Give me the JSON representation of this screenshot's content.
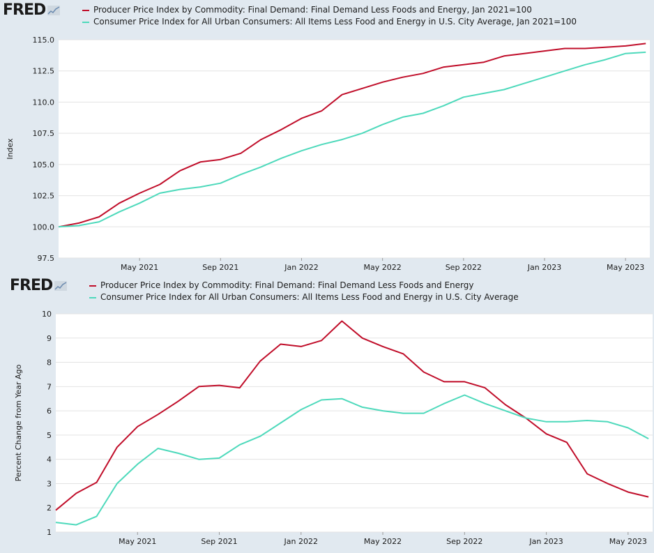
{
  "chart_data": [
    {
      "type": "line",
      "brand": "FRED",
      "ylabel": "Index",
      "ylim": [
        97.5,
        115.0
      ],
      "yticks": [
        "97.5",
        "100.0",
        "102.5",
        "105.0",
        "107.5",
        "110.0",
        "112.5",
        "115.0"
      ],
      "xticks": [
        "May 2021",
        "Sep 2021",
        "Jan 2022",
        "May 2022",
        "Sep 2022",
        "Jan 2023",
        "May 2023"
      ],
      "x": [
        "2021-01",
        "2021-02",
        "2021-03",
        "2021-04",
        "2021-05",
        "2021-06",
        "2021-07",
        "2021-08",
        "2021-09",
        "2021-10",
        "2021-11",
        "2021-12",
        "2022-01",
        "2022-02",
        "2022-03",
        "2022-04",
        "2022-05",
        "2022-06",
        "2022-07",
        "2022-08",
        "2022-09",
        "2022-10",
        "2022-11",
        "2022-12",
        "2023-01",
        "2023-02",
        "2023-03",
        "2023-04",
        "2023-05",
        "2023-06"
      ],
      "grid": true,
      "series": [
        {
          "name": "Producer Price Index by Commodity: Final Demand: Final Demand Less Foods and Energy, Jan 2021=100",
          "color": "#c00d29",
          "values": [
            100.0,
            100.3,
            100.8,
            101.9,
            102.7,
            103.4,
            104.5,
            105.2,
            105.4,
            105.9,
            107.0,
            107.8,
            108.7,
            109.3,
            110.6,
            111.1,
            111.6,
            112.0,
            112.3,
            112.8,
            113.0,
            113.2,
            113.7,
            113.9,
            114.1,
            114.3,
            114.3,
            114.4,
            114.5,
            114.7
          ]
        },
        {
          "name": "Consumer Price Index for All Urban Consumers: All Items Less Food and Energy in U.S. City Average, Jan 2021=100",
          "color": "#4dd9bb",
          "values": [
            100.0,
            100.1,
            100.4,
            101.2,
            101.9,
            102.7,
            103.0,
            103.2,
            103.5,
            104.2,
            104.8,
            105.5,
            106.1,
            106.6,
            107.0,
            107.5,
            108.2,
            108.8,
            109.1,
            109.7,
            110.4,
            110.7,
            111.0,
            111.5,
            112.0,
            112.5,
            113.0,
            113.4,
            113.9,
            114.0
          ]
        }
      ]
    },
    {
      "type": "line",
      "brand": "FRED",
      "ylabel": "Percent Change from Year Ago",
      "ylim": [
        1,
        10
      ],
      "yticks": [
        "1",
        "2",
        "3",
        "4",
        "5",
        "6",
        "7",
        "8",
        "9",
        "10"
      ],
      "xticks": [
        "May 2021",
        "Sep 2021",
        "Jan 2022",
        "May 2022",
        "Sep 2022",
        "Jan 2023",
        "May 2023"
      ],
      "x": [
        "2021-01",
        "2021-02",
        "2021-03",
        "2021-04",
        "2021-05",
        "2021-06",
        "2021-07",
        "2021-08",
        "2021-09",
        "2021-10",
        "2021-11",
        "2021-12",
        "2022-01",
        "2022-02",
        "2022-03",
        "2022-04",
        "2022-05",
        "2022-06",
        "2022-07",
        "2022-08",
        "2022-09",
        "2022-10",
        "2022-11",
        "2022-12",
        "2023-01",
        "2023-02",
        "2023-03",
        "2023-04",
        "2023-05",
        "2023-06"
      ],
      "grid": true,
      "series": [
        {
          "name": "Producer Price Index by Commodity: Final Demand: Final Demand Less Foods and Energy",
          "color": "#c00d29",
          "values": [
            1.9,
            2.6,
            3.05,
            4.5,
            5.35,
            5.85,
            6.4,
            7.0,
            7.05,
            6.95,
            8.05,
            8.75,
            8.65,
            8.9,
            9.7,
            9.0,
            8.65,
            8.35,
            7.6,
            7.2,
            7.2,
            6.95,
            6.25,
            5.7,
            5.05,
            4.7,
            3.4,
            3.0,
            2.65,
            2.45
          ]
        },
        {
          "name": "Consumer Price Index for All Urban Consumers: All Items Less Food and Energy in U.S. City Average",
          "color": "#4dd9bb",
          "values": [
            1.4,
            1.3,
            1.65,
            3.0,
            3.8,
            4.45,
            4.25,
            4.0,
            4.05,
            4.6,
            4.95,
            5.5,
            6.05,
            6.45,
            6.5,
            6.15,
            6.0,
            5.9,
            5.9,
            6.3,
            6.65,
            6.3,
            6.0,
            5.7,
            5.55,
            5.55,
            5.6,
            5.55,
            5.3,
            4.85
          ]
        }
      ]
    }
  ]
}
